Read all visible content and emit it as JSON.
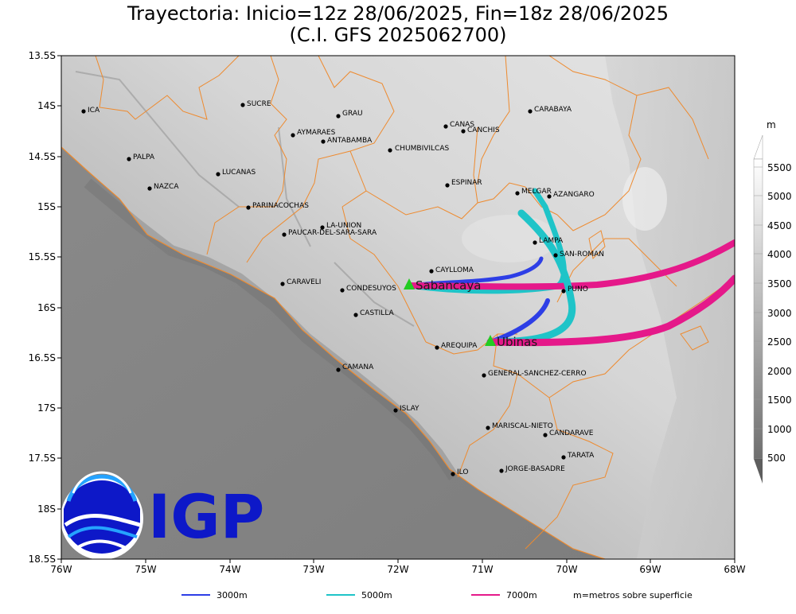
{
  "title_line1": "Trayectoria: Inicio=12z 28/06/2025, Fin=18z 28/06/2025",
  "title_line2": "(C.I. GFS 2025062700)",
  "lon_ticks": [
    "76W",
    "75W",
    "74W",
    "73W",
    "72W",
    "71W",
    "70W",
    "69W",
    "68W"
  ],
  "lat_ticks": [
    "13.5S",
    "14S",
    "14.5S",
    "15S",
    "15.5S",
    "16S",
    "16.5S",
    "17S",
    "17.5S",
    "18S",
    "18.5S"
  ],
  "cities": [
    "ICA",
    "SUCRE",
    "GRAU",
    "AYMARAES",
    "ANTABAMBA",
    "CANAS",
    "CANCHIS",
    "CARABAYA",
    "CHUMBIVILCAS",
    "PALPA",
    "LUCANAS",
    "NAZCA",
    "ESPINAR",
    "MELGAR",
    "AZANGARO",
    "PARINACOCHAS",
    "LA-UNION",
    "PAUCAR-DEL-SARA-SARA",
    "LAMPA",
    "SAN-ROMAN",
    "CAYLLOMA",
    "CARAVELI",
    "CONDESUYOS",
    "PUNO",
    "CASTILLA",
    "AREQUIPA",
    "CAMANA",
    "GENERAL-SANCHEZ-CERRO",
    "ISLAY",
    "MARISCAL-NIETO",
    "CANDARAVE",
    "TARATA",
    "ILO",
    "JORGE-BASADRE"
  ],
  "stations": [
    "Sabancaya",
    "Ubinas"
  ],
  "colorbar": {
    "unit": "m",
    "labels": [
      "5500",
      "5000",
      "4500",
      "4000",
      "3500",
      "3000",
      "2500",
      "2000",
      "1500",
      "1000",
      "500"
    ]
  },
  "legend": {
    "items": [
      {
        "label": "3000m",
        "color": "#2d3ee6"
      },
      {
        "label": "5000m",
        "color": "#1fc4c8"
      },
      {
        "label": "7000m",
        "color": "#e5198a"
      }
    ],
    "note": "m=metros sobre superficie"
  },
  "logo": {
    "text": "IGP"
  },
  "colors": {
    "border": "#ee8a2e",
    "marker": "#22cc22"
  }
}
